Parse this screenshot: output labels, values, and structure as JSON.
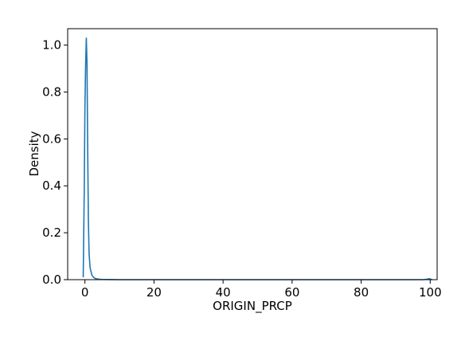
{
  "chart_data": {
    "type": "line",
    "title": "",
    "xlabel": "ORIGIN_PRCP",
    "ylabel": "Density",
    "xlim": [
      -5,
      102
    ],
    "ylim": [
      0,
      1.07
    ],
    "xticks": [
      0,
      20,
      40,
      60,
      80,
      100
    ],
    "xtick_labels": [
      "0",
      "20",
      "40",
      "60",
      "80",
      "100"
    ],
    "yticks": [
      0.0,
      0.2,
      0.4,
      0.6,
      0.8,
      1.0
    ],
    "ytick_labels": [
      "0.0",
      "0.2",
      "0.4",
      "0.6",
      "0.8",
      "1.0"
    ],
    "grid": false,
    "series": [
      {
        "color": "#1f77b4",
        "x": [
          -0.5,
          -0.2,
          0.0,
          0.2,
          0.4,
          0.6,
          0.8,
          1.0,
          1.2,
          1.5,
          2.0,
          2.5,
          3.0,
          4.0,
          5.0,
          7.0,
          10.0,
          20.0,
          40.0,
          60.0,
          80.0,
          98.0,
          99.0,
          99.6,
          100.0,
          100.5
        ],
        "y": [
          0.01,
          0.38,
          0.74,
          0.92,
          1.03,
          0.92,
          0.55,
          0.25,
          0.11,
          0.05,
          0.02,
          0.01,
          0.005,
          0.002,
          0.001,
          0.0005,
          0.0,
          0.0,
          0.0,
          0.0,
          0.0,
          0.0,
          0.002,
          0.004,
          0.003,
          0.0
        ]
      }
    ]
  }
}
